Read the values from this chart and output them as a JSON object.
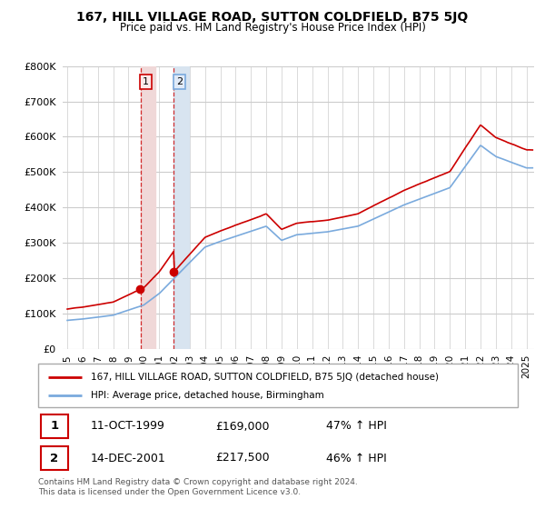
{
  "title": "167, HILL VILLAGE ROAD, SUTTON COLDFIELD, B75 5JQ",
  "subtitle": "Price paid vs. HM Land Registry's House Price Index (HPI)",
  "legend_line1": "167, HILL VILLAGE ROAD, SUTTON COLDFIELD, B75 5JQ (detached house)",
  "legend_line2": "HPI: Average price, detached house, Birmingham",
  "footnote": "Contains HM Land Registry data © Crown copyright and database right 2024.\nThis data is licensed under the Open Government Licence v3.0.",
  "transactions": [
    {
      "num": 1,
      "date": "11-OCT-1999",
      "price": 169000,
      "hpi_change": "47% ↑ HPI"
    },
    {
      "num": 2,
      "date": "14-DEC-2001",
      "price": 217500,
      "hpi_change": "46% ↑ HPI"
    }
  ],
  "transaction_years": [
    1999.78,
    2001.95
  ],
  "transaction_prices": [
    169000,
    217500
  ],
  "ylim": [
    0,
    800000
  ],
  "yticks": [
    0,
    100000,
    200000,
    300000,
    400000,
    500000,
    600000,
    700000,
    800000
  ],
  "xlim_start": 1994.7,
  "xlim_end": 2025.5,
  "red_line_color": "#cc0000",
  "blue_line_color": "#7aaadd",
  "bg_color": "#ffffff",
  "grid_color": "#cccccc",
  "span1_color": "#f0d8d8",
  "span2_color": "#d8e4f0",
  "marker_color": "#cc0000",
  "vline1_color": "#cc0000",
  "vline2_color": "#cc0000"
}
